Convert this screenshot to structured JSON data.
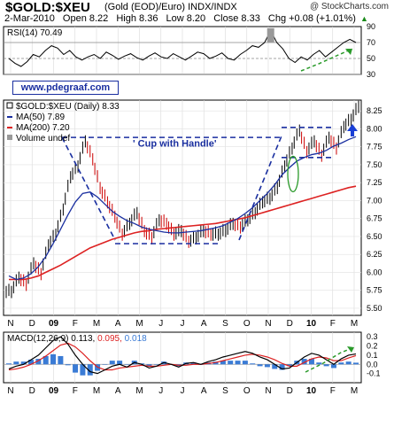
{
  "header": {
    "title": "$GOLD:$XEU",
    "subtitle": "(Gold (EOD)/Euro)  INDX/INDX",
    "credit": "@ StockCharts.com",
    "date": "2-Mar-2010",
    "open": "Open 8.22",
    "high": "High 8.36",
    "low": "Low 8.20",
    "close": "Close 8.33",
    "chg": "Chg +0.08 (+1.01%)",
    "chg_arrow": "▲"
  },
  "watermark": "www.pdegraaf.com",
  "annotation": "' Cup with Handle'",
  "colors": {
    "price": "#000000",
    "up_bar": "#000000",
    "down_bar": "#cc0000",
    "ma50": "#1a2fa0",
    "ma200": "#dd2222",
    "macd": "#000000",
    "signal": "#dd2222",
    "hist": "#3a7bd5",
    "annot_dash": "#1a2fa0",
    "trend_green": "#2a9a2a"
  },
  "chart_data": [
    {
      "panel": "rsi",
      "type": "line",
      "label": "RSI(14) 70.49",
      "ylim": [
        30,
        90
      ],
      "yticks": [
        30,
        50,
        70,
        90
      ],
      "ref_lines": [
        30,
        50,
        70
      ],
      "series": [
        {
          "values": [
            50,
            44,
            40,
            46,
            55,
            52,
            60,
            66,
            63,
            55,
            60,
            52,
            48,
            52,
            55,
            50,
            58,
            54,
            49,
            53,
            56,
            51,
            48,
            53,
            57,
            52,
            50,
            56,
            52,
            48,
            53,
            58,
            56,
            50,
            53,
            57,
            50,
            48,
            55,
            60,
            66,
            64,
            70,
            85,
            70,
            62,
            50,
            45,
            52,
            48,
            55,
            60,
            52,
            58,
            64,
            70,
            74,
            70
          ]
        }
      ]
    },
    {
      "panel": "price",
      "type": "ohlc",
      "legend": [
        "$GOLD:$XEU (Daily) 8.33",
        "MA(50) 7.89",
        "MA(200) 7.20",
        "Volume undef"
      ],
      "ylim": [
        5.4,
        8.4
      ],
      "yticks": [
        5.5,
        5.75,
        6.0,
        6.25,
        6.5,
        6.75,
        7.0,
        7.25,
        7.5,
        7.75,
        8.0,
        8.25
      ],
      "xlabels": [
        "N",
        "D",
        "09",
        "F",
        "M",
        "A",
        "M",
        "J",
        "J",
        "A",
        "S",
        "O",
        "N",
        "D",
        "10",
        "F",
        "M"
      ],
      "series": [
        {
          "name": "$GOLD:$XEU",
          "values": [
            5.75,
            5.95,
            5.85,
            6.15,
            6.0,
            6.4,
            6.55,
            6.9,
            7.35,
            7.5,
            7.85,
            7.6,
            7.2,
            7.0,
            6.8,
            6.55,
            6.7,
            6.85,
            6.6,
            6.5,
            6.75,
            6.7,
            6.55,
            6.6,
            6.45,
            6.5,
            6.6,
            6.55,
            6.55,
            6.6,
            6.7,
            6.65,
            6.75,
            6.85,
            7.0,
            7.05,
            7.2,
            7.5,
            7.75,
            8.0,
            7.7,
            7.85,
            7.65,
            7.9,
            7.75,
            8.05,
            8.15,
            8.33
          ]
        },
        {
          "name": "MA(50)",
          "values": [
            5.95,
            5.9,
            5.92,
            5.98,
            6.08,
            6.22,
            6.4,
            6.6,
            6.8,
            6.98,
            7.1,
            7.12,
            7.05,
            6.95,
            6.85,
            6.78,
            6.72,
            6.68,
            6.63,
            6.6,
            6.58,
            6.56,
            6.55,
            6.55,
            6.56,
            6.57,
            6.58,
            6.6,
            6.62,
            6.65,
            6.7,
            6.75,
            6.82,
            6.9,
            7.0,
            7.1,
            7.22,
            7.36,
            7.46,
            7.55,
            7.6,
            7.64,
            7.66,
            7.7,
            7.76,
            7.8,
            7.85,
            7.89
          ]
        },
        {
          "name": "MA(200)",
          "values": [
            5.9,
            5.9,
            5.9,
            5.92,
            5.95,
            6.0,
            6.05,
            6.1,
            6.16,
            6.22,
            6.28,
            6.34,
            6.38,
            6.42,
            6.46,
            6.49,
            6.52,
            6.55,
            6.57,
            6.58,
            6.6,
            6.61,
            6.62,
            6.63,
            6.64,
            6.65,
            6.66,
            6.67,
            6.68,
            6.7,
            6.72,
            6.74,
            6.76,
            6.79,
            6.82,
            6.85,
            6.88,
            6.91,
            6.94,
            6.97,
            7.0,
            7.03,
            7.06,
            7.09,
            7.12,
            7.15,
            7.18,
            7.2
          ]
        }
      ]
    },
    {
      "panel": "macd",
      "type": "line",
      "label": "MACD(12,26,9) 0.113, 0.095, 0.018",
      "label_parts": [
        "MACD(12,26,9)",
        "0.113,",
        "0.095,",
        "0.018"
      ],
      "ylim": [
        -0.2,
        0.35
      ],
      "yticks": [
        -0.1,
        0.0,
        0.1,
        0.2,
        0.3
      ],
      "xlabels": [
        "N",
        "D",
        "09",
        "F",
        "M",
        "A",
        "M",
        "J",
        "J",
        "A",
        "S",
        "O",
        "N",
        "D",
        "10",
        "F",
        "M"
      ],
      "series": [
        {
          "name": "MACD",
          "values": [
            -0.05,
            -0.02,
            0.0,
            0.05,
            0.1,
            0.18,
            0.26,
            0.3,
            0.22,
            0.1,
            0.0,
            -0.08,
            -0.1,
            -0.06,
            -0.02,
            0.0,
            -0.03,
            0.02,
            0.0,
            -0.04,
            -0.02,
            0.02,
            0.0,
            -0.03,
            0.01,
            0.02,
            0.0,
            0.03,
            0.05,
            0.08,
            0.1,
            0.12,
            0.14,
            0.12,
            0.08,
            0.05,
            0.0,
            -0.05,
            -0.04,
            0.02,
            0.08,
            0.12,
            0.1,
            0.05,
            0.0,
            0.06,
            0.1,
            0.113
          ]
        },
        {
          "name": "Signal",
          "values": [
            -0.06,
            -0.05,
            -0.03,
            0.0,
            0.04,
            0.09,
            0.15,
            0.21,
            0.23,
            0.19,
            0.12,
            0.04,
            -0.03,
            -0.06,
            -0.06,
            -0.04,
            -0.03,
            -0.02,
            -0.01,
            -0.02,
            -0.02,
            -0.01,
            0.0,
            -0.01,
            -0.01,
            0.0,
            0.0,
            0.01,
            0.02,
            0.04,
            0.06,
            0.08,
            0.1,
            0.11,
            0.1,
            0.08,
            0.05,
            0.01,
            -0.02,
            -0.02,
            0.02,
            0.06,
            0.08,
            0.07,
            0.04,
            0.04,
            0.07,
            0.095
          ]
        },
        {
          "name": "Histogram",
          "values": [
            0.01,
            0.03,
            0.03,
            0.05,
            0.06,
            0.09,
            0.11,
            0.09,
            -0.01,
            -0.09,
            -0.12,
            -0.12,
            -0.07,
            0.0,
            0.04,
            0.04,
            0.0,
            0.04,
            0.01,
            -0.02,
            0.0,
            0.03,
            0.0,
            -0.02,
            0.02,
            0.02,
            0.0,
            0.02,
            0.03,
            0.04,
            0.04,
            0.04,
            0.04,
            0.01,
            -0.02,
            -0.03,
            -0.05,
            -0.06,
            -0.02,
            0.04,
            0.06,
            0.06,
            0.02,
            -0.02,
            -0.04,
            0.02,
            0.03,
            0.018
          ]
        }
      ]
    }
  ]
}
